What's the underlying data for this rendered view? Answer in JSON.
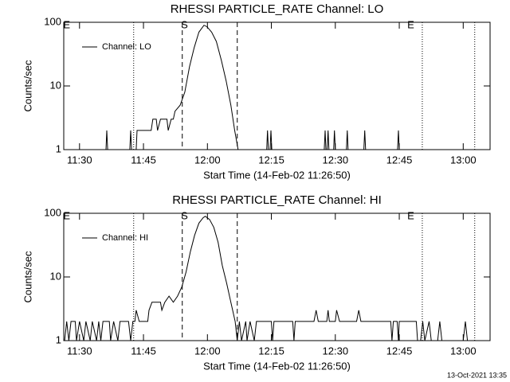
{
  "chart_data": [
    {
      "type": "line",
      "title": "RHESSI PARTICLE_RATE Channel: LO",
      "x_label": "Start Time (14-Feb-02 11:26:50)",
      "y_label": "Counts/sec",
      "log_y": true,
      "legend": "upper left",
      "xlim": [
        686.3,
        786.3
      ],
      "ylim": [
        1,
        100
      ],
      "xticks": [
        {
          "value": 690,
          "label": "11:30"
        },
        {
          "value": 705,
          "label": "11:45"
        },
        {
          "value": 720,
          "label": "12:00"
        },
        {
          "value": 735,
          "label": "12:15"
        },
        {
          "value": 750,
          "label": "12:30"
        },
        {
          "value": 765,
          "label": "12:45"
        },
        {
          "value": 780,
          "label": "13:00"
        }
      ],
      "yticks": [
        1,
        10,
        100
      ],
      "vlines": [
        {
          "x": 702.7,
          "style": "dotted"
        },
        {
          "x": 714.1,
          "style": "dashed"
        },
        {
          "x": 727.0,
          "style": "dashed"
        },
        {
          "x": 770.4,
          "style": "dotted"
        },
        {
          "x": 782.7,
          "style": "dotted"
        }
      ],
      "markers": [
        {
          "x": 687.0,
          "label": "E"
        },
        {
          "x": 714.6,
          "label": "S"
        },
        {
          "x": 767.7,
          "label": "E"
        }
      ],
      "series": [
        {
          "name": "Channel: LO",
          "color": "#000000",
          "x": [
            686.5,
            696.2,
            696.4,
            696.6,
            701.8,
            702.0,
            702.2,
            703.3,
            703.5,
            706.8,
            707.2,
            708.0,
            708.3,
            709.0,
            710.5,
            710.8,
            711.5,
            712.0,
            712.4,
            713.6,
            714.7,
            715.8,
            716.9,
            718.0,
            719.2,
            719.9,
            721.0,
            722.1,
            723.3,
            724.4,
            725.5,
            726.4,
            727.2,
            733.9,
            734.1,
            734.3,
            734.7,
            734.9,
            735.1,
            747.4,
            747.6,
            747.8,
            748.1,
            748.3,
            748.5,
            749.6,
            749.8,
            750.0,
            752.6,
            752.8,
            753.0,
            756.7,
            756.9,
            757.1,
            764.6,
            764.8,
            765.0,
            786.3
          ],
          "values": [
            1,
            1,
            2,
            1,
            1,
            2,
            1,
            1,
            2,
            2,
            3,
            3,
            2,
            3,
            3,
            2,
            3,
            3,
            4,
            5,
            8,
            20,
            40,
            70,
            90,
            85,
            70,
            50,
            25,
            12,
            5,
            2,
            1,
            1,
            2,
            1,
            1,
            2,
            1,
            1,
            2,
            1,
            1,
            2,
            1,
            1,
            2,
            1,
            1,
            2,
            1,
            1,
            2,
            1,
            1,
            2,
            1,
            1
          ]
        }
      ]
    },
    {
      "type": "line",
      "title": "RHESSI PARTICLE_RATE Channel: HI",
      "x_label": "Start Time (14-Feb-02 11:26:50)",
      "y_label": "Counts/sec",
      "log_y": true,
      "legend": "upper left",
      "xlim": [
        686.3,
        786.3
      ],
      "ylim": [
        1,
        100
      ],
      "xticks": [
        {
          "value": 690,
          "label": "11:30"
        },
        {
          "value": 705,
          "label": "11:45"
        },
        {
          "value": 720,
          "label": "12:00"
        },
        {
          "value": 735,
          "label": "12:15"
        },
        {
          "value": 750,
          "label": "12:30"
        },
        {
          "value": 765,
          "label": "12:45"
        },
        {
          "value": 780,
          "label": "13:00"
        }
      ],
      "yticks": [
        1,
        10,
        100
      ],
      "vlines": [
        {
          "x": 702.7,
          "style": "dotted"
        },
        {
          "x": 714.1,
          "style": "dashed"
        },
        {
          "x": 727.0,
          "style": "dashed"
        },
        {
          "x": 770.4,
          "style": "dotted"
        },
        {
          "x": 782.7,
          "style": "dotted"
        }
      ],
      "markers": [
        {
          "x": 687.0,
          "label": "E"
        },
        {
          "x": 714.6,
          "label": "S"
        },
        {
          "x": 767.7,
          "label": "E"
        }
      ],
      "series": [
        {
          "name": "Channel: HI",
          "color": "#000000",
          "x": [
            686.5,
            687.0,
            687.5,
            688.0,
            689.0,
            689.3,
            690.0,
            691.0,
            691.5,
            692.5,
            693.0,
            694.0,
            694.5,
            695.0,
            695.5,
            697.0,
            697.3,
            698.0,
            699.0,
            699.5,
            701.5,
            702.0,
            702.5,
            703.0,
            703.3,
            704.0,
            706.0,
            706.3,
            707.0,
            709.0,
            709.3,
            710.0,
            711.0,
            712.0,
            713.0,
            714.0,
            715.0,
            716.0,
            717.0,
            718.0,
            719.0,
            719.5,
            720.5,
            721.5,
            722.5,
            723.5,
            724.5,
            725.5,
            726.5,
            727.0,
            727.5,
            728.0,
            729.0,
            729.3,
            730.0,
            731.0,
            731.5,
            735.0,
            735.3,
            735.6,
            740.0,
            740.3,
            740.6,
            745.0,
            745.5,
            746.0,
            748.0,
            748.3,
            748.6,
            750.0,
            750.3,
            751.0,
            755.0,
            755.5,
            756.0,
            763.0,
            763.3,
            763.6,
            764.5,
            764.8,
            765.0,
            769.0,
            769.3,
            770.0,
            770.5,
            771.0,
            772.0,
            772.5,
            774.0,
            774.5,
            775.0,
            780.0,
            780.5,
            781.0,
            786.3
          ],
          "values": [
            1,
            2,
            1,
            2,
            2,
            1,
            2,
            1,
            2,
            1,
            2,
            1,
            2,
            1,
            2,
            2,
            1,
            2,
            1,
            2,
            2,
            1,
            2,
            2,
            3,
            2,
            2,
            3,
            4,
            4,
            3,
            4,
            5,
            4,
            5,
            7,
            12,
            25,
            45,
            70,
            85,
            90,
            80,
            60,
            35,
            15,
            8,
            4,
            2,
            1,
            2,
            1,
            2,
            1,
            2,
            1,
            2,
            2,
            1,
            2,
            2,
            1,
            2,
            2,
            3,
            2,
            2,
            3,
            2,
            2,
            3,
            2,
            2,
            3,
            2,
            2,
            1,
            2,
            2,
            1,
            2,
            2,
            1,
            1,
            2,
            1,
            2,
            1,
            1,
            2,
            1,
            1,
            2,
            1,
            1
          ]
        }
      ]
    }
  ],
  "footer": "13-Oct-2021 13:35"
}
